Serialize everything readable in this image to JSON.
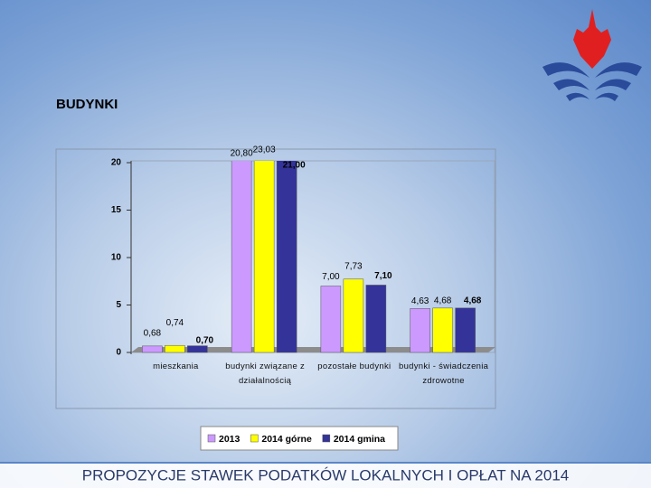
{
  "chart_data": {
    "type": "bar",
    "title": "BUDYNKI",
    "footer": "PROPOZYCJE STAWEK PODATKÓW LOKALNYCH I OPŁAT NA 2014",
    "categories": [
      "mieszkania",
      "budynki związane z działalnością",
      "pozostałe budynki",
      "budynki - świadczenia zdrowotne"
    ],
    "series": [
      {
        "name": "2013",
        "color": "#cc99ff",
        "values": [
          0.68,
          20.8,
          7.0,
          4.63
        ],
        "value_labels": [
          "0,68",
          "20,80",
          "7,00",
          "4,63"
        ]
      },
      {
        "name": "2014 górne",
        "color": "#ffff00",
        "values": [
          0.74,
          23.03,
          7.73,
          4.68
        ],
        "value_labels": [
          "0,74",
          "23,03",
          "7,73",
          "4,68"
        ]
      },
      {
        "name": "2014 gmina",
        "color": "#333399",
        "values": [
          0.7,
          21.0,
          7.1,
          4.68
        ],
        "value_labels": [
          "0,70",
          "21,00",
          "7,10",
          "4,68"
        ]
      }
    ],
    "ylim": [
      0,
      20
    ],
    "yticks": [
      0,
      5,
      10,
      15,
      20
    ],
    "grid": false,
    "legend": "bottom"
  }
}
